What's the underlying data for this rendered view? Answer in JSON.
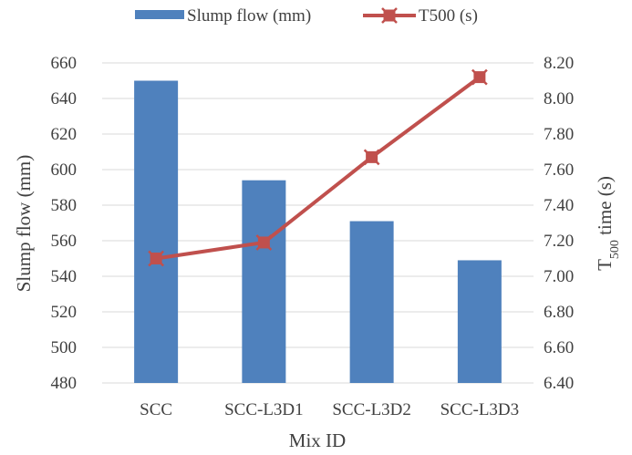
{
  "chart_data": {
    "type": "bar",
    "categories": [
      "SCC",
      "SCC-L3D1",
      "SCC-L3D2",
      "SCC-L3D3"
    ],
    "series": [
      {
        "name": "Slump flow (mm)",
        "type": "bar",
        "axis": "left",
        "color": "#4f81bd",
        "values": [
          650,
          594,
          571,
          549
        ]
      },
      {
        "name": "T500 (s)",
        "type": "line",
        "axis": "right",
        "color": "#c0504d",
        "marker": "x-square",
        "values": [
          7.1,
          7.19,
          7.67,
          8.12
        ]
      }
    ],
    "xlabel": "Mix ID",
    "ylabel": "Slump flow (mm)",
    "y2label": {
      "main": "T",
      "sub": "500",
      "rest": " time (s)"
    },
    "ylim": [
      480,
      660
    ],
    "y2lim": [
      6.4,
      8.2
    ],
    "yticks": [
      "480",
      "500",
      "520",
      "540",
      "560",
      "580",
      "600",
      "620",
      "640",
      "660"
    ],
    "y2ticks": [
      "6.40",
      "6.60",
      "6.80",
      "7.00",
      "7.20",
      "7.40",
      "7.60",
      "7.80",
      "8.00",
      "8.20"
    ],
    "grid": true,
    "legend_position": "top"
  }
}
